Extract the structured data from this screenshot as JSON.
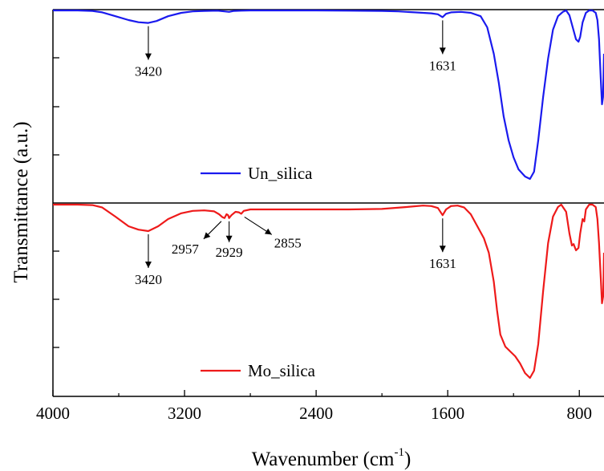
{
  "chart_data": {
    "type": "line",
    "xlabel": "Wavenumber (cm",
    "xlabel_sup": "-1",
    "xlabel_close": ")",
    "ylabel": "Transmittance (a.u.)",
    "xlim": [
      4000,
      650
    ],
    "x_ticks": [
      4000,
      3200,
      2400,
      1600,
      800
    ],
    "x_tick_labels": [
      "4000",
      "3200",
      "2400",
      "1600",
      "800"
    ],
    "grid": false,
    "series": [
      {
        "name": "Un_silica",
        "color": "#1a1aee",
        "panel": "top",
        "legend": "Un_silica",
        "points": [
          [
            4000,
            0.0
          ],
          [
            3850,
            0.0
          ],
          [
            3760,
            -0.01
          ],
          [
            3700,
            -0.04
          ],
          [
            3620,
            -0.12
          ],
          [
            3540,
            -0.2
          ],
          [
            3480,
            -0.245
          ],
          [
            3420,
            -0.26
          ],
          [
            3370,
            -0.22
          ],
          [
            3300,
            -0.12
          ],
          [
            3220,
            -0.05
          ],
          [
            3150,
            -0.02
          ],
          [
            3080,
            -0.01
          ],
          [
            3000,
            -0.005
          ],
          [
            2957,
            -0.02
          ],
          [
            2929,
            -0.03
          ],
          [
            2900,
            -0.01
          ],
          [
            2855,
            -0.005
          ],
          [
            2800,
            0.0
          ],
          [
            2600,
            0.0
          ],
          [
            2400,
            0.0
          ],
          [
            2200,
            -0.005
          ],
          [
            2000,
            -0.01
          ],
          [
            1900,
            -0.02
          ],
          [
            1800,
            -0.04
          ],
          [
            1700,
            -0.06
          ],
          [
            1660,
            -0.08
          ],
          [
            1631,
            -0.14
          ],
          [
            1610,
            -0.07
          ],
          [
            1580,
            -0.04
          ],
          [
            1520,
            -0.03
          ],
          [
            1460,
            -0.05
          ],
          [
            1400,
            -0.12
          ],
          [
            1360,
            -0.35
          ],
          [
            1320,
            -0.9
          ],
          [
            1290,
            -1.5
          ],
          [
            1260,
            -2.2
          ],
          [
            1230,
            -2.7
          ],
          [
            1200,
            -3.05
          ],
          [
            1170,
            -3.3
          ],
          [
            1130,
            -3.45
          ],
          [
            1100,
            -3.5
          ],
          [
            1075,
            -3.35
          ],
          [
            1050,
            -2.7
          ],
          [
            1020,
            -1.8
          ],
          [
            990,
            -1.0
          ],
          [
            960,
            -0.4
          ],
          [
            930,
            -0.12
          ],
          [
            900,
            -0.03
          ],
          [
            880,
            0.0
          ],
          [
            860,
            -0.1
          ],
          [
            840,
            -0.35
          ],
          [
            820,
            -0.6
          ],
          [
            805,
            -0.65
          ],
          [
            795,
            -0.55
          ],
          [
            780,
            -0.25
          ],
          [
            760,
            -0.05
          ],
          [
            740,
            0.0
          ],
          [
            720,
            0.0
          ],
          [
            700,
            -0.05
          ],
          [
            690,
            -0.2
          ],
          [
            680,
            -0.6
          ],
          [
            670,
            -1.4
          ],
          [
            662,
            -1.95
          ],
          [
            656,
            -1.8
          ],
          [
            650,
            -0.9
          ]
        ],
        "annotations": [
          {
            "x": 3420,
            "label": "3420"
          },
          {
            "x": 1631,
            "label": "1631"
          }
        ]
      },
      {
        "name": "Mo_silica",
        "color": "#ee1a1a",
        "panel": "bottom",
        "legend": "Mo_silica",
        "points": [
          [
            4000,
            0.0
          ],
          [
            3850,
            0.0
          ],
          [
            3760,
            -0.01
          ],
          [
            3700,
            -0.06
          ],
          [
            3620,
            -0.25
          ],
          [
            3540,
            -0.45
          ],
          [
            3480,
            -0.52
          ],
          [
            3420,
            -0.55
          ],
          [
            3360,
            -0.45
          ],
          [
            3300,
            -0.3
          ],
          [
            3220,
            -0.18
          ],
          [
            3150,
            -0.13
          ],
          [
            3080,
            -0.12
          ],
          [
            3020,
            -0.14
          ],
          [
            2990,
            -0.2
          ],
          [
            2970,
            -0.26
          ],
          [
            2957,
            -0.28
          ],
          [
            2945,
            -0.2
          ],
          [
            2935,
            -0.22
          ],
          [
            2929,
            -0.28
          ],
          [
            2915,
            -0.22
          ],
          [
            2890,
            -0.15
          ],
          [
            2870,
            -0.16
          ],
          [
            2855,
            -0.19
          ],
          [
            2840,
            -0.13
          ],
          [
            2800,
            -0.1
          ],
          [
            2600,
            -0.1
          ],
          [
            2400,
            -0.1
          ],
          [
            2200,
            -0.1
          ],
          [
            2000,
            -0.09
          ],
          [
            1850,
            -0.05
          ],
          [
            1750,
            -0.02
          ],
          [
            1700,
            -0.03
          ],
          [
            1660,
            -0.07
          ],
          [
            1631,
            -0.22
          ],
          [
            1610,
            -0.1
          ],
          [
            1580,
            -0.03
          ],
          [
            1540,
            -0.02
          ],
          [
            1500,
            -0.06
          ],
          [
            1460,
            -0.2
          ],
          [
            1420,
            -0.45
          ],
          [
            1380,
            -0.7
          ],
          [
            1350,
            -1.0
          ],
          [
            1320,
            -1.6
          ],
          [
            1300,
            -2.2
          ],
          [
            1280,
            -2.7
          ],
          [
            1250,
            -2.95
          ],
          [
            1220,
            -3.05
          ],
          [
            1190,
            -3.15
          ],
          [
            1160,
            -3.3
          ],
          [
            1130,
            -3.5
          ],
          [
            1100,
            -3.6
          ],
          [
            1075,
            -3.45
          ],
          [
            1050,
            -2.9
          ],
          [
            1020,
            -1.8
          ],
          [
            990,
            -0.8
          ],
          [
            960,
            -0.25
          ],
          [
            930,
            -0.05
          ],
          [
            910,
            0.0
          ],
          [
            880,
            -0.15
          ],
          [
            860,
            -0.6
          ],
          [
            845,
            -0.85
          ],
          [
            835,
            -0.82
          ],
          [
            820,
            -0.95
          ],
          [
            805,
            -0.9
          ],
          [
            795,
            -0.6
          ],
          [
            780,
            -0.3
          ],
          [
            770,
            -0.35
          ],
          [
            760,
            -0.1
          ],
          [
            740,
            0.0
          ],
          [
            720,
            0.0
          ],
          [
            700,
            -0.05
          ],
          [
            690,
            -0.3
          ],
          [
            680,
            -0.8
          ],
          [
            670,
            -1.5
          ],
          [
            662,
            -2.05
          ],
          [
            655,
            -1.9
          ],
          [
            650,
            -1.0
          ]
        ],
        "annotations": [
          {
            "x": 3420,
            "label": "3420"
          },
          {
            "x": 2957,
            "label": "2957"
          },
          {
            "x": 2929,
            "label": "2929"
          },
          {
            "x": 2855,
            "label": "2855"
          },
          {
            "x": 1631,
            "label": "1631"
          }
        ]
      }
    ]
  }
}
